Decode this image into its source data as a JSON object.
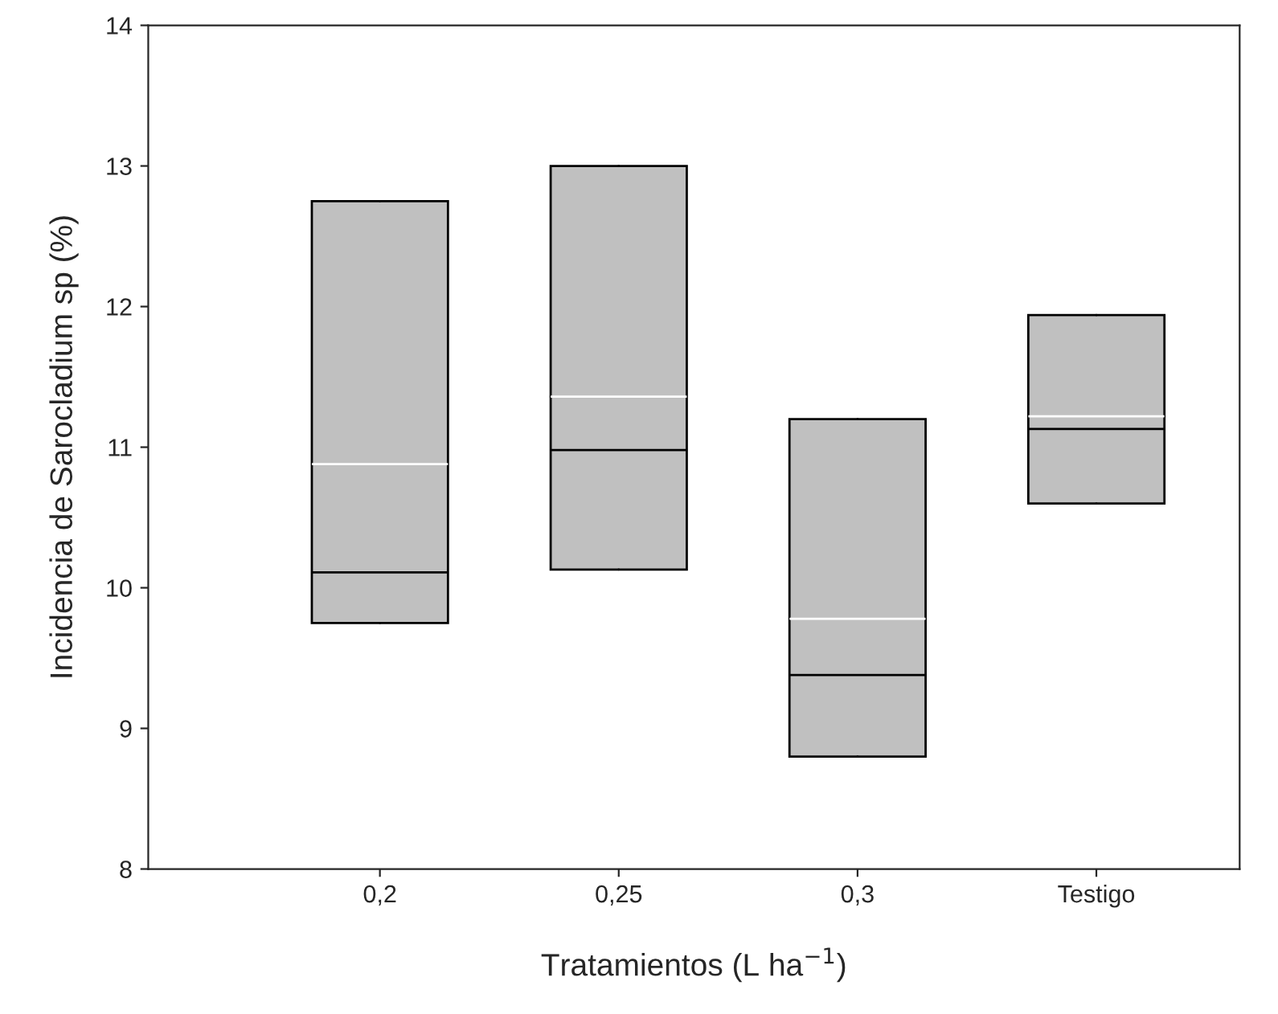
{
  "chart_data": {
    "type": "box",
    "xlabel": "Tratamientos (L ha$^{−1}$)",
    "ylabel": "Incidencia de Sarocladium sp (%)",
    "categories": [
      "0,2",
      "0,25",
      "0,3",
      "Testigo"
    ],
    "boxes": [
      {
        "low": 9.75,
        "q1": 9.75,
        "median": 10.11,
        "q3": 12.75,
        "high": 12.75,
        "mean": 10.88
      },
      {
        "low": 10.13,
        "q1": 10.13,
        "median": 10.98,
        "q3": 13.0,
        "high": 13.0,
        "mean": 11.36
      },
      {
        "low": 8.8,
        "q1": 8.8,
        "median": 9.38,
        "q3": 11.2,
        "high": 11.2,
        "mean": 9.78
      },
      {
        "low": 10.6,
        "q1": 10.6,
        "median": 11.13,
        "q3": 11.94,
        "high": 11.94,
        "mean": 11.22
      }
    ],
    "color": "#c0c0c0",
    "ylim": [
      8,
      14
    ],
    "yticks": [
      8,
      9,
      10,
      11,
      12,
      13,
      14
    ],
    "grid": false
  }
}
